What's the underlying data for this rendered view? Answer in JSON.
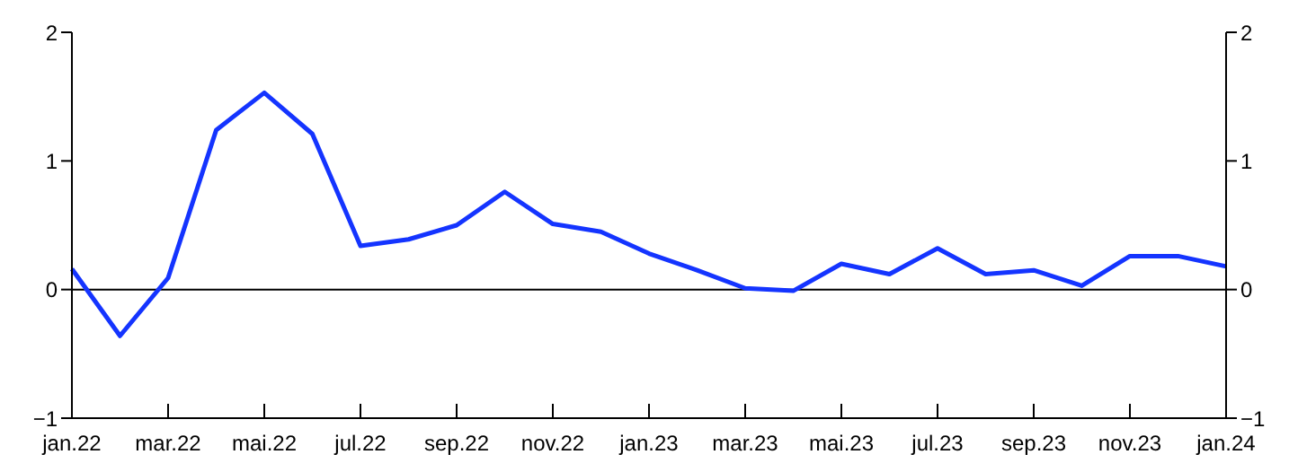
{
  "chart_data": {
    "type": "line",
    "categories": [
      "jan.22",
      null,
      "mar.22",
      null,
      "mai.22",
      null,
      "jul.22",
      null,
      "sep.22",
      null,
      "nov.22",
      null,
      "jan.23",
      null,
      "mar.23",
      null,
      "mai.23",
      null,
      "jul.23",
      null,
      "sep.23",
      null,
      "nov.23",
      null,
      "jan.24"
    ],
    "series": [
      {
        "color": "#1434ff",
        "values": [
          0.16,
          -0.36,
          0.09,
          1.24,
          1.53,
          1.21,
          0.34,
          0.39,
          0.5,
          0.76,
          0.51,
          0.45,
          0.28,
          0.15,
          0.01,
          -0.01,
          0.2,
          0.12,
          0.32,
          0.12,
          0.15,
          0.03,
          0.26,
          0.26,
          0.18
        ]
      }
    ],
    "ylim": [
      -1,
      2
    ],
    "yticks": [
      {
        "value": -1,
        "label": "−1"
      },
      0,
      1,
      2
    ],
    "y2lim": [
      -1,
      2
    ],
    "y2ticks": [
      {
        "value": -1,
        "label": "−1"
      },
      0,
      1,
      2
    ],
    "ref_lines": [
      {
        "axis": "y",
        "value": 0,
        "color": "#000000"
      }
    ],
    "grid": false,
    "legend": false,
    "marker": "none",
    "line_style": "solid"
  }
}
